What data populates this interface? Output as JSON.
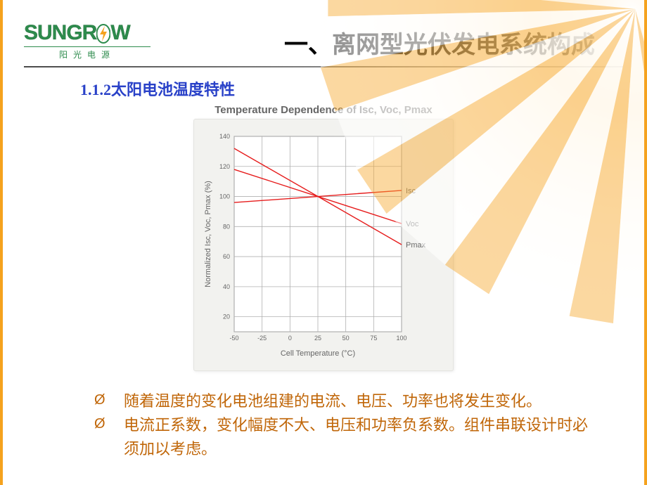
{
  "brand": {
    "name_part1": "SUNGR",
    "name_part2": "W",
    "subtitle": "阳光电源",
    "color": "#2d8b4c",
    "bolt_color": "#f5a21e"
  },
  "header": {
    "title": "一、离网型光伏发电系统构成"
  },
  "subheading": "1.1.2太阳电池温度特性",
  "chart": {
    "type": "line",
    "title": "Temperature Dependence of Isc, Voc, Pmax",
    "title_fontsize": 15,
    "title_color": "#666666",
    "background_color": "#f2f2ef",
    "plot_background": "#ffffff",
    "grid_color": "#b0b0b0",
    "axis_color": "#666666",
    "text_color": "#666666",
    "label_fontsize": 11,
    "tick_fontsize": 9,
    "xlabel": "Cell Temperature (°C)",
    "ylabel": "Normalized Isc, Voc, Pmax (%)",
    "xlim": [
      -50,
      100
    ],
    "ylim": [
      10,
      140
    ],
    "xtick_step": 25,
    "ytick_step": 20,
    "line_color": "#e61c1c",
    "line_width": 1.4,
    "series": [
      {
        "label": "Isc",
        "points": [
          [
            -50,
            96
          ],
          [
            25,
            100
          ],
          [
            100,
            104
          ]
        ]
      },
      {
        "label": "Voc",
        "points": [
          [
            -50,
            118
          ],
          [
            25,
            100
          ],
          [
            100,
            82
          ]
        ]
      },
      {
        "label": "Pmax",
        "points": [
          [
            -50,
            132
          ],
          [
            25,
            100
          ],
          [
            100,
            68
          ]
        ]
      }
    ],
    "series_label_fontsize": 11
  },
  "bullets": {
    "symbol": "Ø",
    "color": "#c06608",
    "fontsize": 22,
    "items": [
      "随着温度的变化电池组建的电流、电压、功率也将发生变化。",
      "电流正系数，变化幅度不大、电压和功率负系数。组件串联设计时必须加以考虑。"
    ]
  },
  "frame": {
    "side_border_color": "#f5a21e",
    "side_border_width": 4
  }
}
